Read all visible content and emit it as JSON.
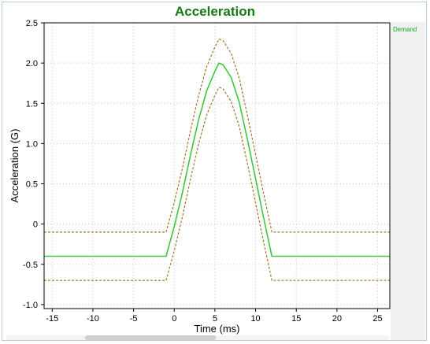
{
  "chart_data": {
    "type": "line",
    "title": "Acceleration",
    "xlabel": "Time (ms)",
    "ylabel": "Acceleration (G)",
    "xlim": [
      -16,
      26.5
    ],
    "ylim": [
      -1.05,
      2.5
    ],
    "xticks": [
      -15,
      -10,
      -5,
      0,
      5,
      10,
      15,
      20,
      25
    ],
    "xtick_labels": [
      "-15",
      "-10",
      "-5",
      "0",
      "5",
      "10",
      "15",
      "20",
      "25"
    ],
    "yticks": [
      2.5,
      2.0,
      1.5,
      1.0,
      0.5,
      0,
      -0.5,
      -1.0
    ],
    "ytick_labels": [
      "2.5",
      "2.0",
      "1.5",
      "1.0",
      "0.5",
      "0",
      "-0.5",
      "-1.0"
    ],
    "grid": true,
    "legend_position": "right",
    "series": [
      {
        "name": "Demand",
        "color": "#3cc83c",
        "style": "solid",
        "x": [
          -16,
          -1,
          0,
          1,
          2,
          3,
          4,
          5,
          5.5,
          6,
          7,
          8,
          9,
          10,
          11,
          12,
          26.5
        ],
        "y": [
          -0.4,
          -0.4,
          -0.03,
          0.39,
          0.86,
          1.3,
          1.66,
          1.9,
          2.0,
          1.98,
          1.82,
          1.51,
          1.05,
          0.56,
          0.07,
          -0.4,
          -0.4
        ]
      },
      {
        "color": "#a07a28",
        "style": "dashed",
        "x": [
          -16,
          -1,
          0,
          1,
          2,
          3,
          4,
          5,
          5.5,
          6,
          7,
          8,
          9,
          10,
          11,
          12,
          26.5
        ],
        "y": [
          -0.1,
          -0.1,
          0.27,
          0.69,
          1.16,
          1.6,
          1.96,
          2.2,
          2.3,
          2.28,
          2.12,
          1.81,
          1.35,
          0.86,
          0.37,
          -0.1,
          -0.1
        ]
      },
      {
        "color": "#a07a28",
        "style": "dashed",
        "x": [
          -16,
          -1,
          0,
          1,
          2,
          3,
          4,
          5,
          5.5,
          6,
          7,
          8,
          9,
          10,
          11,
          12,
          26.5
        ],
        "y": [
          -0.7,
          -0.7,
          -0.33,
          0.09,
          0.56,
          1.0,
          1.36,
          1.6,
          1.7,
          1.68,
          1.52,
          1.21,
          0.75,
          0.26,
          -0.23,
          -0.7,
          -0.7
        ]
      }
    ]
  }
}
